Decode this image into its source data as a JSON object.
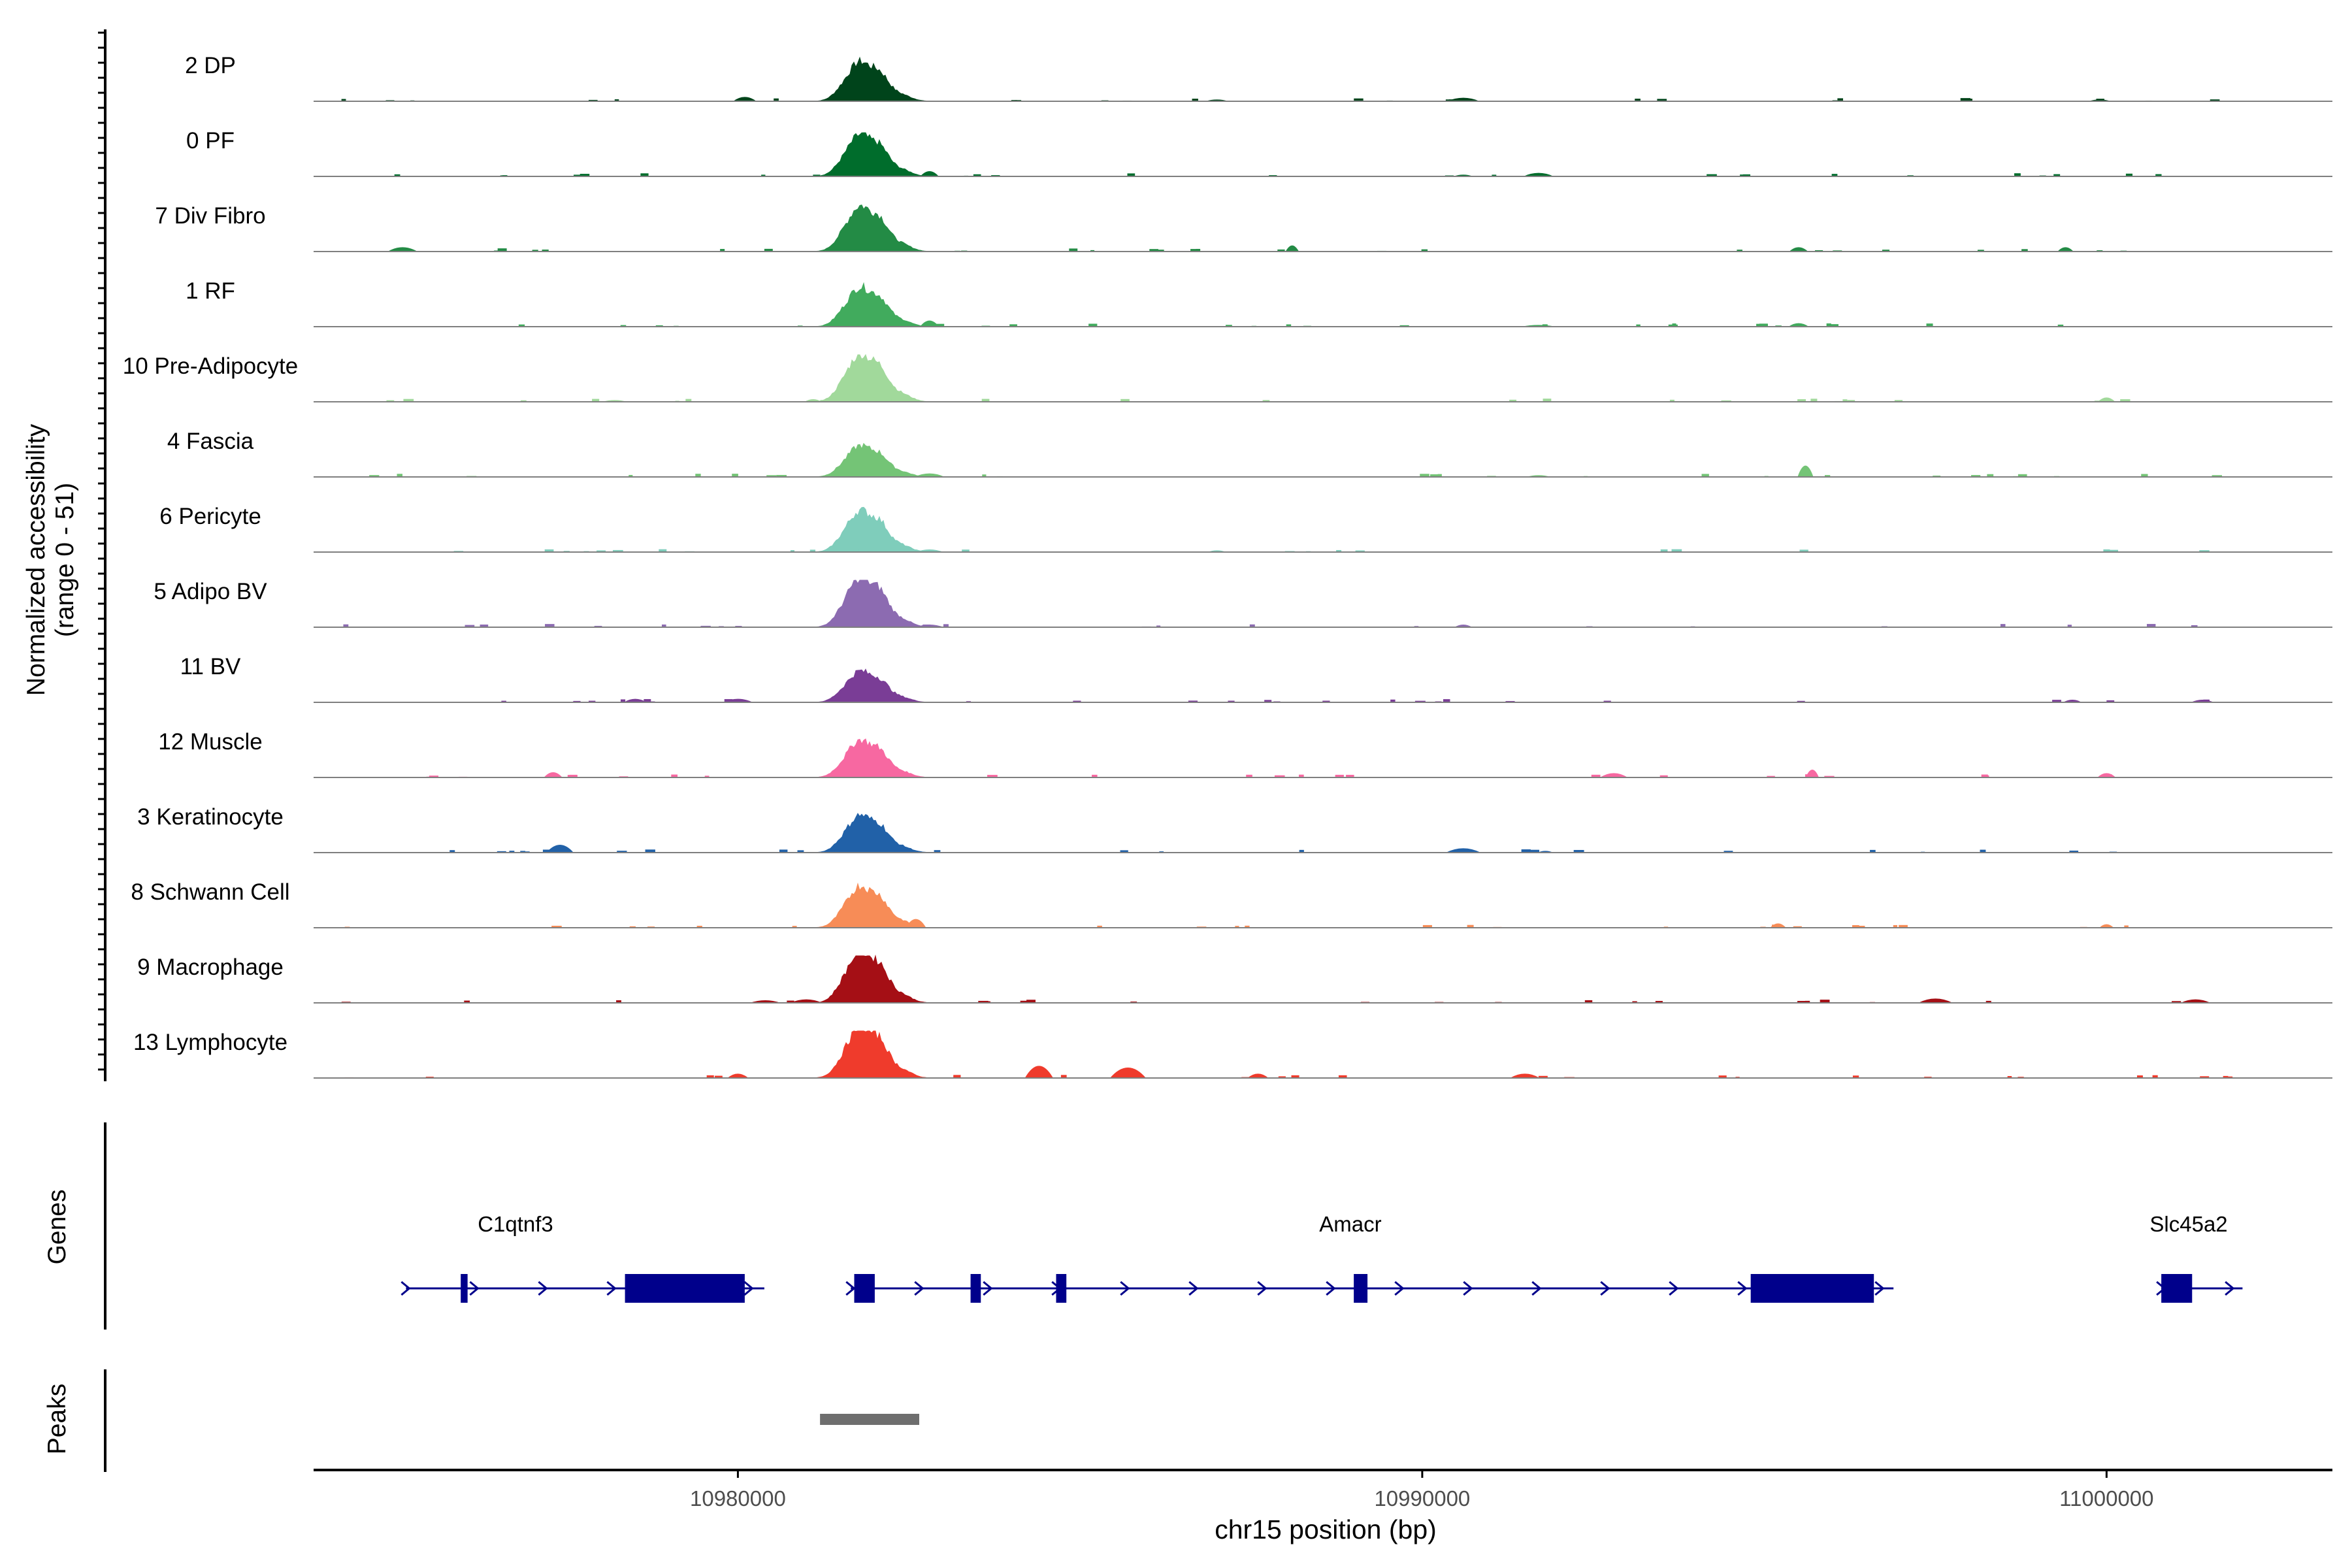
{
  "chart_data": {
    "type": "area",
    "title": "",
    "ylabel_line1": "Normalized accessibility",
    "ylabel_line2": "(range 0 - 51)",
    "xlabel": "chr15 position (bp)",
    "xlim": [
      10973800,
      11003300
    ],
    "ylim": [
      0,
      51
    ],
    "x_ticks": [
      {
        "value": 10980000,
        "label": "10980000"
      },
      {
        "value": 10990000,
        "label": "10990000"
      },
      {
        "value": 11000000,
        "label": "11000000"
      }
    ],
    "series": [
      {
        "name": "2 DP",
        "color": "#00441b",
        "main_peak": 38,
        "peaks": [
          {
            "pos": 10980100,
            "h": 5
          },
          {
            "pos": 10990600,
            "h": 4
          },
          {
            "pos": 10987000,
            "h": 2
          },
          {
            "pos": 10999900,
            "h": 2
          }
        ]
      },
      {
        "name": "0 PF",
        "color": "#006d2c",
        "main_peak": 40,
        "peaks": [
          {
            "pos": 10982800,
            "h": 6
          },
          {
            "pos": 10991700,
            "h": 4
          },
          {
            "pos": 10990600,
            "h": 2
          }
        ]
      },
      {
        "name": "7 Div Fibro",
        "color": "#238b45",
        "main_peak": 44,
        "peaks": [
          {
            "pos": 10975100,
            "h": 5
          },
          {
            "pos": 10988100,
            "h": 7
          },
          {
            "pos": 10995500,
            "h": 5
          },
          {
            "pos": 10999400,
            "h": 5
          }
        ]
      },
      {
        "name": "1 RF",
        "color": "#41ab5d",
        "main_peak": 38,
        "peaks": [
          {
            "pos": 10982800,
            "h": 7
          },
          {
            "pos": 10995500,
            "h": 4
          },
          {
            "pos": 10991700,
            "h": 2
          }
        ]
      },
      {
        "name": "10 Pre-Adipocyte",
        "color": "#a1d99b",
        "main_peak": 46,
        "peaks": [
          {
            "pos": 10981100,
            "h": 3
          },
          {
            "pos": 11000000,
            "h": 5
          },
          {
            "pos": 10978200,
            "h": 2
          }
        ]
      },
      {
        "name": "4 Fascia",
        "color": "#74c476",
        "main_peak": 30,
        "peaks": [
          {
            "pos": 10995600,
            "h": 13
          },
          {
            "pos": 10982800,
            "h": 4
          },
          {
            "pos": 10991700,
            "h": 2
          }
        ]
      },
      {
        "name": "6 Pericyte",
        "color": "#7fcdbb",
        "main_peak": 40,
        "peaks": [
          {
            "pos": 10982800,
            "h": 3
          },
          {
            "pos": 10987000,
            "h": 2
          }
        ]
      },
      {
        "name": "5 Adipo BV",
        "color": "#8c6bb1",
        "main_peak": 48,
        "peaks": [
          {
            "pos": 10990600,
            "h": 3
          },
          {
            "pos": 10982800,
            "h": 3
          }
        ]
      },
      {
        "name": "11 BV",
        "color": "#7a3d96",
        "main_peak": 30,
        "peaks": [
          {
            "pos": 10978500,
            "h": 4
          },
          {
            "pos": 10980000,
            "h": 4
          },
          {
            "pos": 11001400,
            "h": 3
          },
          {
            "pos": 10999500,
            "h": 3
          }
        ]
      },
      {
        "name": "12 Muscle",
        "color": "#f768a1",
        "main_peak": 36,
        "peaks": [
          {
            "pos": 10977300,
            "h": 6
          },
          {
            "pos": 10995700,
            "h": 9
          },
          {
            "pos": 10992800,
            "h": 5
          },
          {
            "pos": 11000000,
            "h": 5
          }
        ]
      },
      {
        "name": "3 Keratinocyte",
        "color": "#2161a8",
        "main_peak": 36,
        "peaks": [
          {
            "pos": 10977400,
            "h": 9
          },
          {
            "pos": 10990600,
            "h": 5
          },
          {
            "pos": 10991800,
            "h": 2
          }
        ]
      },
      {
        "name": "8 Schwann Cell",
        "color": "#f78c57",
        "main_peak": 40,
        "peaks": [
          {
            "pos": 10982600,
            "h": 10
          },
          {
            "pos": 10995200,
            "h": 5
          },
          {
            "pos": 11000000,
            "h": 4
          }
        ]
      },
      {
        "name": "9 Macrophage",
        "color": "#a50f15",
        "main_peak": 50,
        "peaks": [
          {
            "pos": 10981000,
            "h": 4
          },
          {
            "pos": 10997500,
            "h": 5
          },
          {
            "pos": 11001300,
            "h": 4
          },
          {
            "pos": 10980400,
            "h": 3
          }
        ]
      },
      {
        "name": "13 Lymphocyte",
        "color": "#ef3b2c",
        "main_peak": 50,
        "peaks": [
          {
            "pos": 10984400,
            "h": 14
          },
          {
            "pos": 10985700,
            "h": 12
          },
          {
            "pos": 10987600,
            "h": 5
          },
          {
            "pos": 10980000,
            "h": 5
          },
          {
            "pos": 10991500,
            "h": 5
          }
        ]
      }
    ],
    "main_peak_center": 10981800,
    "genes_panel": {
      "label": "Genes",
      "color": "#00008b",
      "genes": [
        {
          "name": "C1qtnf3",
          "start": 10975150,
          "end": 10980100,
          "exons": [
            [
              10975950,
              10976050
            ],
            [
              10978350,
              10980100
            ]
          ]
        },
        {
          "name": "Amacr",
          "start": 10981650,
          "end": 10996600,
          "exons": [
            [
              10981700,
              10982000
            ],
            [
              10983400,
              10983550
            ],
            [
              10984650,
              10984800
            ],
            [
              10989000,
              10989200
            ],
            [
              10994800,
              10996600
            ]
          ]
        },
        {
          "name": "Slc45a2",
          "start": 11000800,
          "end": 11001700,
          "exons": [
            [
              11000800,
              11001250
            ]
          ]
        }
      ]
    },
    "peaks_panel": {
      "label": "Peaks",
      "color": "#6e6e6e",
      "regions": [
        [
          10981200,
          10982650
        ]
      ]
    }
  }
}
